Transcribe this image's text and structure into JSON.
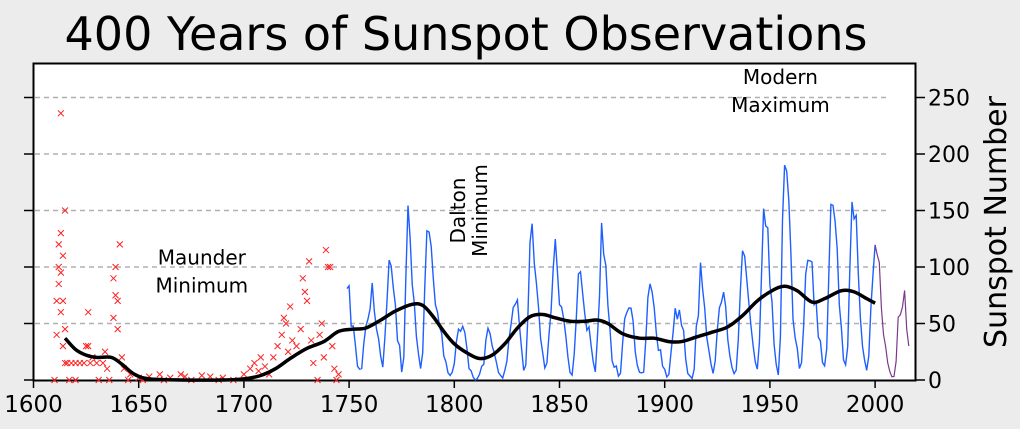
{
  "chart_data": {
    "type": "line",
    "title": "400 Years of Sunspot Observations",
    "xlabel": "",
    "ylabel": "Sunspot Number",
    "xlim": [
      1600,
      2019
    ],
    "ylim": [
      0,
      280
    ],
    "xticks": [
      1600,
      1650,
      1700,
      1750,
      1800,
      1850,
      1900,
      1950,
      2000
    ],
    "yticks": [
      0,
      50,
      100,
      150,
      200,
      250
    ],
    "grid": "horizontal dashed",
    "legend": "none",
    "colors": {
      "early_observations": "#ff2020",
      "telescopic_record": "#1f5fff",
      "recent": "#7a3a8a",
      "smoothed": "#000000",
      "grid": "#b0b0b0"
    },
    "annotations": [
      {
        "lines": [
          "Maunder",
          "Minimum"
        ],
        "x": 1680,
        "y": 102
      },
      {
        "lines": [
          "Dalton",
          "Minimum"
        ],
        "x": 1808,
        "y": 150,
        "rotated": true
      },
      {
        "lines": [
          "Modern",
          "Maximum"
        ],
        "x": 1955,
        "y": 262
      }
    ],
    "early_observations": [
      [
        1610,
        0
      ],
      [
        1611,
        70
      ],
      [
        1611,
        40
      ],
      [
        1612,
        120
      ],
      [
        1612,
        100
      ],
      [
        1612,
        85
      ],
      [
        1613,
        236
      ],
      [
        1613,
        130
      ],
      [
        1613,
        95
      ],
      [
        1613,
        60
      ],
      [
        1614,
        110
      ],
      [
        1614,
        70
      ],
      [
        1614,
        30
      ],
      [
        1615,
        150
      ],
      [
        1615,
        45
      ],
      [
        1615,
        15
      ],
      [
        1616,
        15
      ],
      [
        1617,
        0
      ],
      [
        1618,
        15
      ],
      [
        1620,
        15
      ],
      [
        1620,
        0
      ],
      [
        1622,
        15
      ],
      [
        1624,
        15
      ],
      [
        1625,
        30
      ],
      [
        1626,
        60
      ],
      [
        1626,
        30
      ],
      [
        1627,
        15
      ],
      [
        1628,
        20
      ],
      [
        1630,
        15
      ],
      [
        1631,
        0
      ],
      [
        1633,
        15
      ],
      [
        1634,
        25
      ],
      [
        1635,
        10
      ],
      [
        1636,
        0
      ],
      [
        1638,
        90
      ],
      [
        1638,
        55
      ],
      [
        1639,
        100
      ],
      [
        1639,
        75
      ],
      [
        1640,
        70
      ],
      [
        1640,
        45
      ],
      [
        1641,
        120
      ],
      [
        1642,
        20
      ],
      [
        1643,
        10
      ],
      [
        1645,
        0
      ],
      [
        1646,
        5
      ],
      [
        1650,
        2
      ],
      [
        1652,
        0
      ],
      [
        1655,
        3
      ],
      [
        1660,
        5
      ],
      [
        1662,
        0
      ],
      [
        1665,
        2
      ],
      [
        1670,
        5
      ],
      [
        1672,
        3
      ],
      [
        1675,
        0
      ],
      [
        1680,
        4
      ],
      [
        1684,
        3
      ],
      [
        1688,
        0
      ],
      [
        1690,
        2
      ],
      [
        1695,
        0
      ],
      [
        1700,
        5
      ],
      [
        1703,
        10
      ],
      [
        1705,
        15
      ],
      [
        1707,
        8
      ],
      [
        1708,
        20
      ],
      [
        1710,
        12
      ],
      [
        1712,
        5
      ],
      [
        1714,
        20
      ],
      [
        1716,
        30
      ],
      [
        1718,
        40
      ],
      [
        1719,
        55
      ],
      [
        1720,
        50
      ],
      [
        1721,
        25
      ],
      [
        1722,
        65
      ],
      [
        1723,
        35
      ],
      [
        1725,
        30
      ],
      [
        1727,
        45
      ],
      [
        1728,
        90
      ],
      [
        1729,
        78
      ],
      [
        1730,
        70
      ],
      [
        1731,
        105
      ],
      [
        1732,
        35
      ],
      [
        1733,
        15
      ],
      [
        1735,
        0
      ],
      [
        1736,
        40
      ],
      [
        1737,
        50
      ],
      [
        1738,
        20
      ],
      [
        1739,
        115
      ],
      [
        1740,
        100
      ],
      [
        1741,
        100
      ],
      [
        1742,
        30
      ],
      [
        1743,
        10
      ],
      [
        1744,
        0
      ],
      [
        1745,
        5
      ]
    ],
    "telescopic_record": {
      "start_year": 1749,
      "annual_values": [
        80.9,
        83.4,
        47.7,
        47.8,
        30.7,
        12.2,
        9.6,
        10.2,
        32.4,
        47.6,
        54.0,
        62.9,
        85.9,
        61.2,
        45.1,
        36.4,
        20.9,
        11.4,
        37.8,
        69.8,
        106.1,
        100.8,
        81.6,
        66.5,
        34.8,
        30.6,
        7.0,
        19.8,
        92.5,
        154.4,
        125.9,
        84.8,
        68.1,
        38.5,
        22.8,
        10.2,
        24.1,
        82.9,
        132.0,
        130.9,
        118.1,
        89.9,
        66.6,
        60.0,
        46.9,
        41.0,
        21.3,
        16.0,
        6.4,
        4.1,
        6.8,
        14.5,
        34.0,
        45.0,
        43.1,
        47.5,
        42.2,
        28.1,
        10.1,
        8.1,
        2.5,
        0.0,
        1.4,
        5.0,
        12.2,
        13.9,
        35.4,
        45.8,
        41.0,
        30.1,
        23.9,
        15.6,
        6.6,
        4.0,
        1.8,
        8.5,
        16.6,
        36.3,
        49.6,
        64.2,
        67.0,
        70.9,
        47.8,
        27.5,
        8.5,
        13.2,
        56.9,
        121.5,
        138.3,
        103.2,
        85.7,
        64.6,
        36.7,
        24.2,
        10.7,
        15.0,
        40.1,
        61.5,
        98.5,
        124.7,
        96.3,
        66.6,
        64.5,
        54.1,
        39.0,
        20.6,
        6.7,
        4.3,
        22.7,
        54.8,
        93.8,
        95.8,
        77.2,
        59.1,
        44.0,
        47.0,
        30.5,
        16.3,
        7.3,
        37.6,
        74.0,
        139.0,
        111.2,
        101.6,
        66.2,
        44.7,
        17.0,
        11.3,
        12.4,
        3.4,
        6.0,
        32.3,
        54.3,
        59.7,
        63.7,
        63.5,
        52.2,
        25.4,
        13.1,
        6.8,
        6.3,
        7.1,
        35.6,
        73.0,
        85.1,
        78.0,
        64.0,
        41.8,
        26.2,
        26.7,
        12.1,
        9.5,
        2.7,
        5.0,
        24.4,
        42.0,
        63.5,
        53.8,
        62.0,
        48.5,
        43.9,
        18.6,
        5.7,
        3.6,
        1.4,
        9.6,
        47.4,
        57.1,
        103.9,
        80.6,
        63.6,
        37.6,
        26.1,
        14.2,
        5.8,
        16.7,
        44.3,
        63.9,
        69.0,
        77.8,
        64.9,
        35.7,
        21.2,
        11.1,
        5.7,
        8.7,
        36.1,
        79.7,
        114.4,
        109.6,
        88.8,
        67.8,
        47.5,
        30.6,
        16.3,
        9.6,
        33.2,
        92.6,
        151.6,
        136.3,
        134.7,
        83.9,
        69.4,
        31.5,
        13.9,
        4.4,
        38.0,
        141.7,
        190.2,
        184.8,
        159.0,
        112.3,
        53.9,
        37.6,
        27.9,
        10.2,
        15.1,
        47.0,
        93.8,
        105.9,
        105.5,
        104.5,
        66.6,
        68.9,
        38.0,
        34.5,
        15.5,
        12.6,
        27.5,
        92.5,
        155.4,
        154.6,
        140.4,
        115.9,
        66.6,
        45.9,
        17.9,
        13.4,
        29.4,
        100.2,
        157.6,
        142.6,
        145.7,
        94.3,
        54.6,
        29.9,
        17.5,
        8.6,
        21.5,
        64.3,
        93.3,
        119.6
      ]
    },
    "recent": {
      "start_year": 2000,
      "annual_values": [
        119.6,
        111.0,
        104.0,
        63.7,
        40.4,
        29.8,
        15.2,
        7.5,
        2.9,
        3.1,
        16.5,
        55.7,
        57.6,
        64.7,
        79.3,
        45.0,
        30.0
      ]
    },
    "smoothed": [
      [
        1615,
        37
      ],
      [
        1620,
        27
      ],
      [
        1625,
        22
      ],
      [
        1630,
        20
      ],
      [
        1637,
        20
      ],
      [
        1642,
        14
      ],
      [
        1648,
        5
      ],
      [
        1655,
        1
      ],
      [
        1670,
        0
      ],
      [
        1690,
        0
      ],
      [
        1700,
        1
      ],
      [
        1708,
        4
      ],
      [
        1715,
        10
      ],
      [
        1722,
        19
      ],
      [
        1730,
        28
      ],
      [
        1738,
        34
      ],
      [
        1745,
        43
      ],
      [
        1752,
        45
      ],
      [
        1758,
        46
      ],
      [
        1765,
        53
      ],
      [
        1772,
        61
      ],
      [
        1780,
        67
      ],
      [
        1785,
        66
      ],
      [
        1790,
        56
      ],
      [
        1795,
        43
      ],
      [
        1800,
        32
      ],
      [
        1806,
        24
      ],
      [
        1812,
        19
      ],
      [
        1818,
        22
      ],
      [
        1824,
        32
      ],
      [
        1830,
        46
      ],
      [
        1836,
        56
      ],
      [
        1842,
        58
      ],
      [
        1848,
        55
      ],
      [
        1855,
        52
      ],
      [
        1862,
        52
      ],
      [
        1868,
        53
      ],
      [
        1873,
        50
      ],
      [
        1880,
        41
      ],
      [
        1888,
        37
      ],
      [
        1895,
        37
      ],
      [
        1902,
        34
      ],
      [
        1908,
        34
      ],
      [
        1915,
        38
      ],
      [
        1922,
        42
      ],
      [
        1930,
        47
      ],
      [
        1937,
        57
      ],
      [
        1944,
        70
      ],
      [
        1951,
        79
      ],
      [
        1957,
        83
      ],
      [
        1963,
        79
      ],
      [
        1970,
        69
      ],
      [
        1976,
        72
      ],
      [
        1984,
        79
      ],
      [
        1990,
        78
      ],
      [
        1996,
        72
      ],
      [
        2000,
        68
      ]
    ]
  }
}
